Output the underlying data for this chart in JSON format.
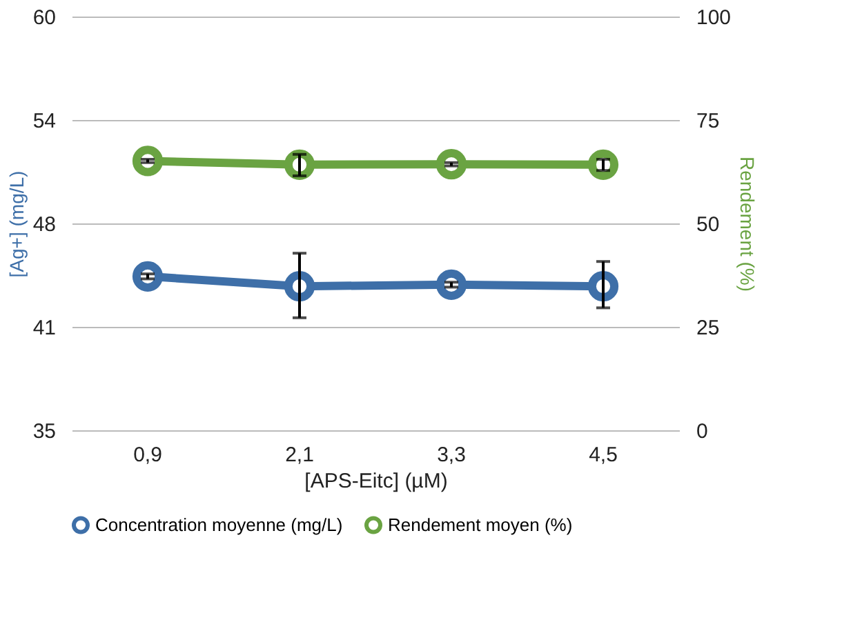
{
  "chart_data": {
    "type": "line",
    "xlabel": "[APS-Eitc] (µM)",
    "ylabel": "[Ag+] (mg/L)",
    "y2label": "Rendement (%)",
    "categories": [
      "0,9",
      "2,1",
      "3,3",
      "4,5"
    ],
    "series": [
      {
        "name": "Concentration moyenne (mg/L)",
        "color": "#3e6fa8",
        "values": [
          44.3,
          43.7,
          43.8,
          43.7
        ],
        "errors": [
          0.15,
          [
            41.8,
            45.7
          ],
          0.15,
          [
            42.4,
            45.2
          ]
        ]
      },
      {
        "name": "Rendement moyen (%)",
        "color": "#6aa342",
        "axis": "y2",
        "values": [
          65.1,
          64.2,
          64.3,
          64.2
        ],
        "errors": [
          0.4,
          [
            61.5,
            66.7
          ],
          0.4,
          [
            62.8,
            65.5
          ]
        ]
      }
    ],
    "ylim": [
      35,
      60
    ],
    "yticks": [
      35,
      {
        "value": 41.25,
        "label": "41"
      },
      {
        "value": 47.5,
        "label": "48"
      },
      {
        "value": 53.75,
        "label": "54"
      },
      60
    ],
    "y2lim": [
      0,
      100
    ],
    "y2ticks": [
      0,
      25,
      50,
      75,
      100
    ],
    "grid": "y",
    "legend": "bottom",
    "marker": "circle",
    "line_style": "solid"
  }
}
